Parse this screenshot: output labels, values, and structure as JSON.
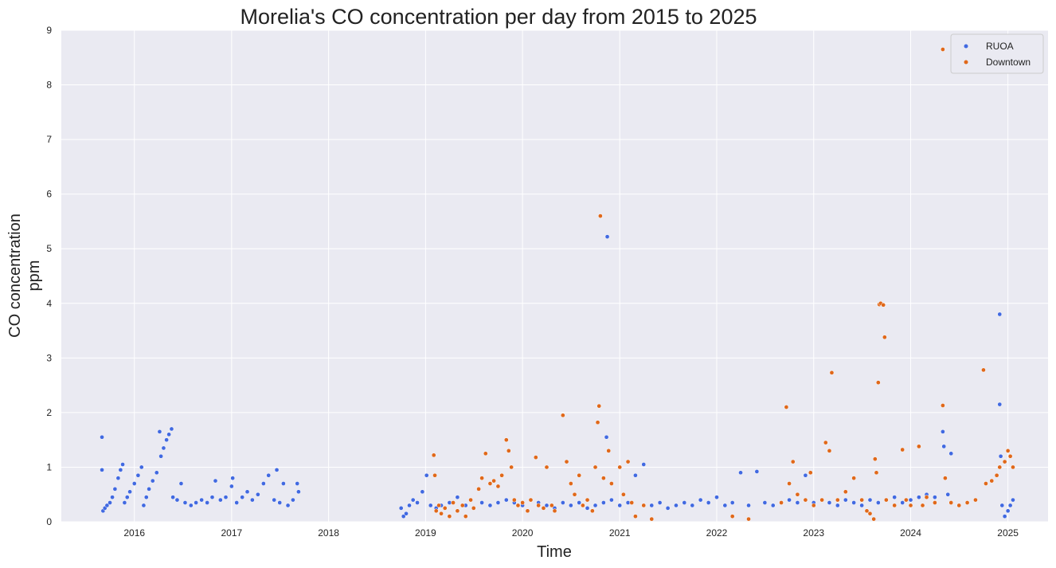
{
  "chart_data": {
    "type": "scatter",
    "title": "Morelia's CO concentration per day from 2015 to 2025",
    "xlabel": "Time",
    "ylabel_lines": [
      "CO concentration",
      "ppm"
    ],
    "x_range": [
      "2015-04-01",
      "2025-06-01"
    ],
    "ylim": [
      0,
      9
    ],
    "x_ticks": [
      "2016",
      "2017",
      "2018",
      "2019",
      "2020",
      "2021",
      "2022",
      "2023",
      "2024",
      "2025"
    ],
    "y_ticks": [
      "0",
      "1",
      "2",
      "3",
      "4",
      "5",
      "6",
      "7",
      "8",
      "9"
    ],
    "grid": true,
    "legend_position": "top-right",
    "background": "#eaeaf2",
    "series": [
      {
        "name": "RUOA",
        "color": "#4169e1",
        "points": [
          [
            "2015-09-01",
            1.55
          ],
          [
            "2015-09-01",
            0.95
          ],
          [
            "2015-09-05",
            0.2
          ],
          [
            "2015-09-12",
            0.25
          ],
          [
            "2015-09-20",
            0.3
          ],
          [
            "2015-10-01",
            0.35
          ],
          [
            "2015-10-10",
            0.45
          ],
          [
            "2015-10-20",
            0.6
          ],
          [
            "2015-11-01",
            0.8
          ],
          [
            "2015-11-10",
            0.95
          ],
          [
            "2015-11-18",
            1.05
          ],
          [
            "2015-11-25",
            0.35
          ],
          [
            "2015-12-05",
            0.45
          ],
          [
            "2015-12-15",
            0.55
          ],
          [
            "2016-01-01",
            0.7
          ],
          [
            "2016-01-15",
            0.85
          ],
          [
            "2016-01-28",
            1.0
          ],
          [
            "2016-02-05",
            0.3
          ],
          [
            "2016-02-15",
            0.45
          ],
          [
            "2016-02-25",
            0.6
          ],
          [
            "2016-03-10",
            0.75
          ],
          [
            "2016-03-25",
            0.9
          ],
          [
            "2016-04-05",
            1.65
          ],
          [
            "2016-04-10",
            1.2
          ],
          [
            "2016-04-20",
            1.35
          ],
          [
            "2016-05-01",
            1.5
          ],
          [
            "2016-05-10",
            1.6
          ],
          [
            "2016-05-20",
            1.7
          ],
          [
            "2016-05-25",
            0.45
          ],
          [
            "2016-06-10",
            0.4
          ],
          [
            "2016-06-25",
            0.7
          ],
          [
            "2016-07-10",
            0.35
          ],
          [
            "2016-08-01",
            0.3
          ],
          [
            "2016-08-20",
            0.35
          ],
          [
            "2016-09-10",
            0.4
          ],
          [
            "2016-10-01",
            0.35
          ],
          [
            "2016-10-20",
            0.45
          ],
          [
            "2016-11-01",
            0.75
          ],
          [
            "2016-11-20",
            0.4
          ],
          [
            "2016-12-10",
            0.45
          ],
          [
            "2017-01-01",
            0.65
          ],
          [
            "2017-01-05",
            0.8
          ],
          [
            "2017-01-20",
            0.35
          ],
          [
            "2017-02-10",
            0.45
          ],
          [
            "2017-03-01",
            0.55
          ],
          [
            "2017-03-20",
            0.4
          ],
          [
            "2017-04-10",
            0.5
          ],
          [
            "2017-05-01",
            0.7
          ],
          [
            "2017-05-20",
            0.85
          ],
          [
            "2017-06-10",
            0.4
          ],
          [
            "2017-06-20",
            0.95
          ],
          [
            "2017-07-01",
            0.35
          ],
          [
            "2017-07-15",
            0.7
          ],
          [
            "2017-08-01",
            0.3
          ],
          [
            "2017-08-20",
            0.4
          ],
          [
            "2017-09-05",
            0.7
          ],
          [
            "2017-09-10",
            0.55
          ],
          [
            "2018-10-01",
            0.25
          ],
          [
            "2018-10-10",
            0.1
          ],
          [
            "2018-10-20",
            0.15
          ],
          [
            "2018-11-01",
            0.3
          ],
          [
            "2018-11-15",
            0.4
          ],
          [
            "2018-12-01",
            0.35
          ],
          [
            "2018-12-20",
            0.55
          ],
          [
            "2019-01-05",
            0.85
          ],
          [
            "2019-01-20",
            0.3
          ],
          [
            "2019-02-10",
            0.25
          ],
          [
            "2019-03-01",
            0.3
          ],
          [
            "2019-04-01",
            0.35
          ],
          [
            "2019-05-01",
            0.45
          ],
          [
            "2019-06-01",
            0.3
          ],
          [
            "2019-07-01",
            0.25
          ],
          [
            "2019-08-01",
            0.35
          ],
          [
            "2019-09-01",
            0.3
          ],
          [
            "2019-10-01",
            0.35
          ],
          [
            "2019-11-01",
            0.4
          ],
          [
            "2019-12-01",
            0.35
          ],
          [
            "2020-01-01",
            0.3
          ],
          [
            "2020-02-01",
            0.4
          ],
          [
            "2020-03-01",
            0.35
          ],
          [
            "2020-04-01",
            0.3
          ],
          [
            "2020-05-01",
            0.25
          ],
          [
            "2020-06-01",
            0.35
          ],
          [
            "2020-07-01",
            0.3
          ],
          [
            "2020-08-01",
            0.35
          ],
          [
            "2020-09-01",
            0.25
          ],
          [
            "2020-10-01",
            0.3
          ],
          [
            "2020-11-01",
            0.35
          ],
          [
            "2020-11-15",
            5.22
          ],
          [
            "2020-11-12",
            1.55
          ],
          [
            "2020-12-01",
            0.4
          ],
          [
            "2021-01-01",
            0.3
          ],
          [
            "2021-02-01",
            0.35
          ],
          [
            "2021-03-01",
            0.85
          ],
          [
            "2021-04-01",
            1.05
          ],
          [
            "2021-05-01",
            0.3
          ],
          [
            "2021-06-01",
            0.35
          ],
          [
            "2021-07-01",
            0.25
          ],
          [
            "2021-08-01",
            0.3
          ],
          [
            "2021-09-01",
            0.35
          ],
          [
            "2021-10-01",
            0.3
          ],
          [
            "2021-11-01",
            0.4
          ],
          [
            "2021-12-01",
            0.35
          ],
          [
            "2022-01-01",
            0.45
          ],
          [
            "2022-02-01",
            0.3
          ],
          [
            "2022-03-01",
            0.35
          ],
          [
            "2022-04-01",
            0.9
          ],
          [
            "2022-05-01",
            0.3
          ],
          [
            "2022-06-01",
            0.92
          ],
          [
            "2022-07-01",
            0.35
          ],
          [
            "2022-08-01",
            0.3
          ],
          [
            "2022-09-01",
            0.35
          ],
          [
            "2022-10-01",
            0.4
          ],
          [
            "2022-11-01",
            0.35
          ],
          [
            "2022-12-01",
            0.85
          ],
          [
            "2023-01-01",
            0.35
          ],
          [
            "2023-02-01",
            0.4
          ],
          [
            "2023-03-01",
            0.35
          ],
          [
            "2023-04-01",
            0.3
          ],
          [
            "2023-05-01",
            0.4
          ],
          [
            "2023-06-01",
            0.35
          ],
          [
            "2023-07-01",
            0.3
          ],
          [
            "2023-08-01",
            0.4
          ],
          [
            "2023-09-01",
            0.35
          ],
          [
            "2023-10-01",
            0.4
          ],
          [
            "2023-11-01",
            0.45
          ],
          [
            "2023-12-01",
            0.35
          ],
          [
            "2024-01-01",
            0.4
          ],
          [
            "2024-02-01",
            0.45
          ],
          [
            "2024-03-01",
            0.5
          ],
          [
            "2024-04-01",
            0.45
          ],
          [
            "2024-05-01",
            1.65
          ],
          [
            "2024-05-05",
            1.38
          ],
          [
            "2024-05-20",
            0.5
          ],
          [
            "2024-06-01",
            1.25
          ],
          [
            "2024-12-01",
            3.8
          ],
          [
            "2024-12-01",
            2.15
          ],
          [
            "2024-12-05",
            1.2
          ],
          [
            "2024-12-10",
            0.3
          ],
          [
            "2024-12-20",
            0.1
          ],
          [
            "2025-01-01",
            0.2
          ],
          [
            "2025-01-10",
            0.3
          ],
          [
            "2025-01-20",
            0.4
          ]
        ]
      },
      {
        "name": "Downtown",
        "color": "#e0681a",
        "points": [
          [
            "2019-02-01",
            1.22
          ],
          [
            "2019-02-05",
            0.85
          ],
          [
            "2019-02-10",
            0.2
          ],
          [
            "2019-02-20",
            0.3
          ],
          [
            "2019-03-01",
            0.15
          ],
          [
            "2019-03-15",
            0.25
          ],
          [
            "2019-04-01",
            0.1
          ],
          [
            "2019-04-15",
            0.35
          ],
          [
            "2019-05-01",
            0.2
          ],
          [
            "2019-05-20",
            0.3
          ],
          [
            "2019-06-01",
            0.1
          ],
          [
            "2019-06-20",
            0.4
          ],
          [
            "2019-07-01",
            0.25
          ],
          [
            "2019-07-20",
            0.6
          ],
          [
            "2019-08-01",
            0.8
          ],
          [
            "2019-08-15",
            1.25
          ],
          [
            "2019-09-01",
            0.7
          ],
          [
            "2019-09-15",
            0.75
          ],
          [
            "2019-10-01",
            0.65
          ],
          [
            "2019-10-15",
            0.85
          ],
          [
            "2019-11-01",
            1.5
          ],
          [
            "2019-11-10",
            1.3
          ],
          [
            "2019-11-20",
            1.0
          ],
          [
            "2019-12-01",
            0.4
          ],
          [
            "2019-12-15",
            0.3
          ],
          [
            "2020-01-01",
            0.35
          ],
          [
            "2020-01-20",
            0.2
          ],
          [
            "2020-02-01",
            0.4
          ],
          [
            "2020-02-20",
            1.18
          ],
          [
            "2020-03-01",
            0.3
          ],
          [
            "2020-03-20",
            0.25
          ],
          [
            "2020-04-01",
            1.0
          ],
          [
            "2020-04-20",
            0.3
          ],
          [
            "2020-05-01",
            0.2
          ],
          [
            "2020-06-01",
            1.95
          ],
          [
            "2020-06-15",
            1.1
          ],
          [
            "2020-07-01",
            0.7
          ],
          [
            "2020-07-15",
            0.5
          ],
          [
            "2020-08-01",
            0.85
          ],
          [
            "2020-08-15",
            0.3
          ],
          [
            "2020-09-01",
            0.4
          ],
          [
            "2020-09-20",
            0.2
          ],
          [
            "2020-10-01",
            1.0
          ],
          [
            "2020-10-10",
            1.82
          ],
          [
            "2020-10-15",
            2.12
          ],
          [
            "2020-10-20",
            5.6
          ],
          [
            "2020-11-01",
            0.8
          ],
          [
            "2020-11-20",
            1.3
          ],
          [
            "2020-12-01",
            0.7
          ],
          [
            "2021-01-01",
            1.0
          ],
          [
            "2021-01-15",
            0.5
          ],
          [
            "2021-02-01",
            1.1
          ],
          [
            "2021-02-15",
            0.35
          ],
          [
            "2021-03-01",
            0.1
          ],
          [
            "2021-04-01",
            0.3
          ],
          [
            "2021-05-01",
            0.05
          ],
          [
            "2022-03-01",
            0.1
          ],
          [
            "2022-05-01",
            0.05
          ],
          [
            "2022-09-01",
            0.35
          ],
          [
            "2022-09-20",
            2.1
          ],
          [
            "2022-10-01",
            0.7
          ],
          [
            "2022-10-15",
            1.1
          ],
          [
            "2022-11-01",
            0.5
          ],
          [
            "2022-12-01",
            0.4
          ],
          [
            "2022-12-20",
            0.9
          ],
          [
            "2023-01-01",
            0.3
          ],
          [
            "2023-02-01",
            0.4
          ],
          [
            "2023-02-15",
            1.45
          ],
          [
            "2023-03-01",
            1.3
          ],
          [
            "2023-03-10",
            2.73
          ],
          [
            "2023-04-01",
            0.4
          ],
          [
            "2023-05-01",
            0.55
          ],
          [
            "2023-06-01",
            0.8
          ],
          [
            "2023-07-01",
            0.4
          ],
          [
            "2023-07-20",
            0.2
          ],
          [
            "2023-08-01",
            0.15
          ],
          [
            "2023-08-15",
            0.05
          ],
          [
            "2023-08-20",
            1.15
          ],
          [
            "2023-08-25",
            0.9
          ],
          [
            "2023-09-01",
            2.55
          ],
          [
            "2023-09-05",
            3.98
          ],
          [
            "2023-09-10",
            4.0
          ],
          [
            "2023-09-20",
            3.97
          ],
          [
            "2023-09-25",
            3.38
          ],
          [
            "2023-10-01",
            0.4
          ],
          [
            "2023-11-01",
            0.3
          ],
          [
            "2023-12-01",
            1.32
          ],
          [
            "2023-12-15",
            0.4
          ],
          [
            "2024-01-01",
            0.3
          ],
          [
            "2024-02-01",
            1.38
          ],
          [
            "2024-02-15",
            0.3
          ],
          [
            "2024-03-01",
            0.45
          ],
          [
            "2024-04-01",
            0.35
          ],
          [
            "2024-05-01",
            8.65
          ],
          [
            "2024-05-01",
            2.13
          ],
          [
            "2024-05-10",
            0.8
          ],
          [
            "2024-06-01",
            0.35
          ],
          [
            "2024-07-01",
            0.3
          ],
          [
            "2024-08-01",
            0.35
          ],
          [
            "2024-09-01",
            0.4
          ],
          [
            "2024-10-01",
            2.78
          ],
          [
            "2024-10-10",
            0.7
          ],
          [
            "2024-11-01",
            0.75
          ],
          [
            "2024-11-20",
            0.85
          ],
          [
            "2024-12-01",
            1.0
          ],
          [
            "2024-12-20",
            1.1
          ],
          [
            "2025-01-01",
            1.3
          ],
          [
            "2025-01-10",
            1.2
          ],
          [
            "2025-01-20",
            1.0
          ]
        ]
      }
    ]
  }
}
